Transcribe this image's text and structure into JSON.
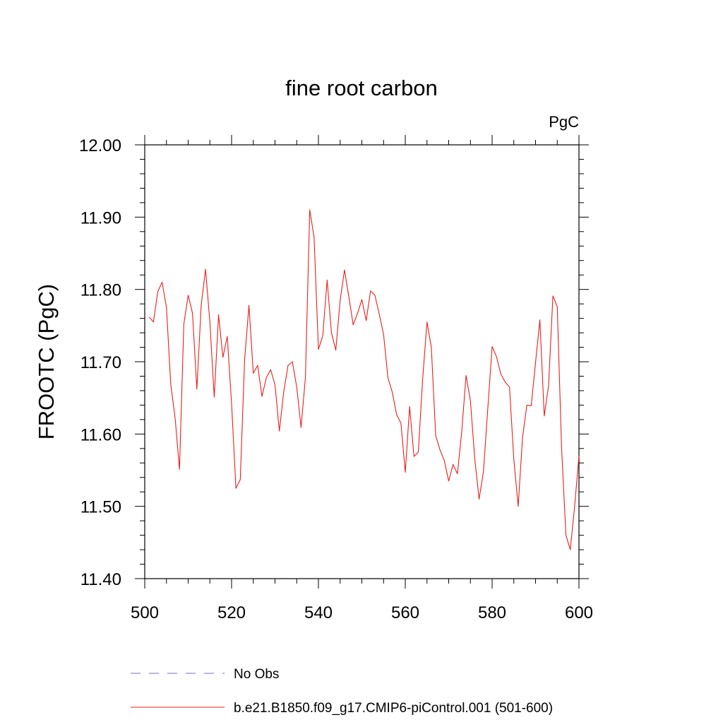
{
  "chart_data": {
    "type": "line",
    "title": "fine root carbon",
    "units": "PgC",
    "ylabel": "FROOTC  (PgC)",
    "xlabel": "",
    "xlim": [
      500,
      600
    ],
    "ylim": [
      11.4,
      12.0
    ],
    "x_ticks": [
      500,
      520,
      540,
      560,
      580,
      600
    ],
    "x_tick_labels": [
      "500",
      "520",
      "540",
      "560",
      "580",
      "600"
    ],
    "y_ticks": [
      11.4,
      11.5,
      11.6,
      11.7,
      11.8,
      11.9,
      12.0
    ],
    "y_tick_labels": [
      "11.40",
      "11.50",
      "11.60",
      "11.70",
      "11.80",
      "11.90",
      "12.00"
    ],
    "x_minor_step": 5,
    "y_minor_step": 0.02,
    "grid": false,
    "legend_position": "bottom-left",
    "series": [
      {
        "name": "No Obs",
        "color": "#7b6fb8",
        "dash": "dashed",
        "x": [],
        "values": []
      },
      {
        "name": "b.e21.B1850.f09_g17.CMIP6-piControl.001 (501-600)",
        "color": "#e8201b",
        "dash": "solid",
        "x": [
          501,
          502,
          503,
          504,
          505,
          506,
          507,
          508,
          509,
          510,
          511,
          512,
          513,
          514,
          515,
          516,
          517,
          518,
          519,
          520,
          521,
          522,
          523,
          524,
          525,
          526,
          527,
          528,
          529,
          530,
          531,
          532,
          533,
          534,
          535,
          536,
          537,
          538,
          539,
          540,
          541,
          542,
          543,
          544,
          545,
          546,
          547,
          548,
          549,
          550,
          551,
          552,
          553,
          554,
          555,
          556,
          557,
          558,
          559,
          560,
          561,
          562,
          563,
          564,
          565,
          566,
          567,
          568,
          569,
          570,
          571,
          572,
          573,
          574,
          575,
          576,
          577,
          578,
          579,
          580,
          581,
          582,
          583,
          584,
          585,
          586,
          587,
          588,
          589,
          590,
          591,
          592,
          593,
          594,
          595,
          596,
          597,
          598,
          599,
          600
        ],
        "values": [
          11.762,
          11.755,
          11.797,
          11.81,
          11.775,
          11.668,
          11.622,
          11.551,
          11.752,
          11.792,
          11.767,
          11.662,
          11.778,
          11.828,
          11.755,
          11.651,
          11.765,
          11.706,
          11.735,
          11.642,
          11.525,
          11.537,
          11.703,
          11.778,
          11.684,
          11.695,
          11.652,
          11.678,
          11.689,
          11.668,
          11.604,
          11.658,
          11.695,
          11.7,
          11.665,
          11.609,
          11.678,
          11.91,
          11.872,
          11.717,
          11.736,
          11.813,
          11.74,
          11.716,
          11.785,
          11.827,
          11.79,
          11.751,
          11.767,
          11.786,
          11.757,
          11.798,
          11.792,
          11.766,
          11.738,
          11.678,
          11.658,
          11.627,
          11.615,
          11.547,
          11.638,
          11.569,
          11.575,
          11.676,
          11.755,
          11.72,
          11.598,
          11.578,
          11.563,
          11.535,
          11.558,
          11.545,
          11.603,
          11.681,
          11.646,
          11.566,
          11.51,
          11.548,
          11.635,
          11.721,
          11.707,
          11.683,
          11.672,
          11.665,
          11.565,
          11.5,
          11.595,
          11.64,
          11.639,
          11.699,
          11.758,
          11.625,
          11.667,
          11.791,
          11.776,
          11.58,
          11.46,
          11.44,
          11.5,
          11.57
        ]
      }
    ]
  }
}
